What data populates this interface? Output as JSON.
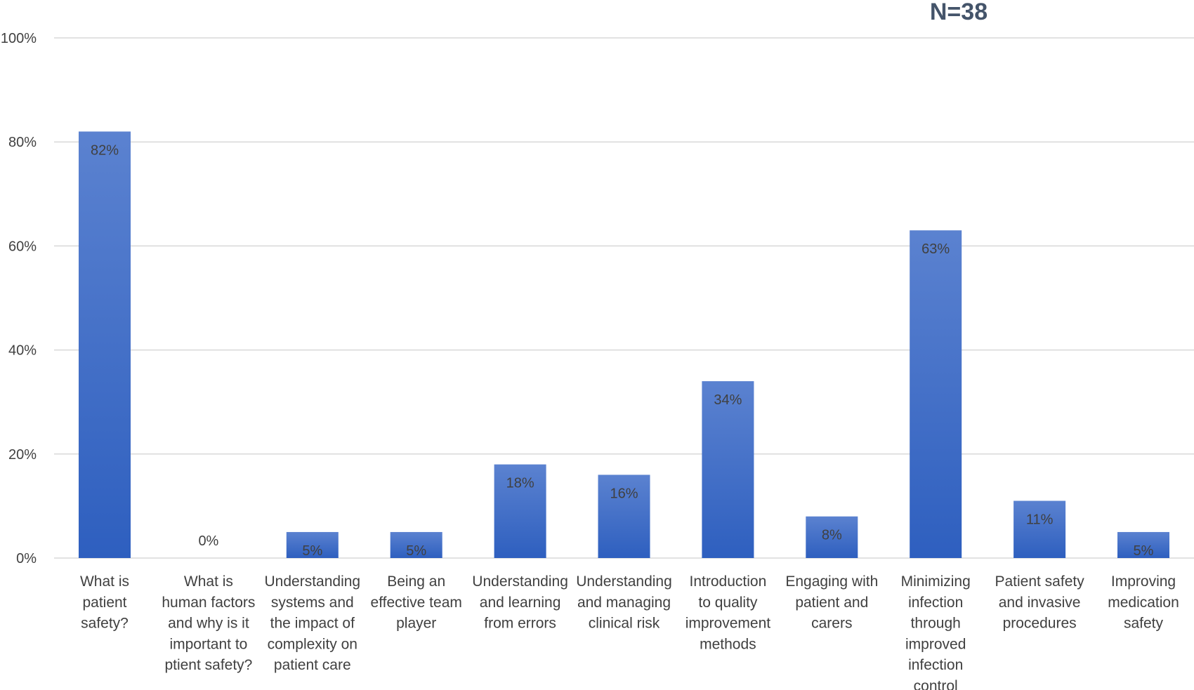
{
  "chart_data": {
    "type": "bar",
    "title": "N=38",
    "categories": [
      "What is patient safety?",
      "What is human factors and why is it important to ptient safety?",
      "Understanding systems and the impact of complexity on patient care",
      "Being an effective team player",
      "Understanding and learning from errors",
      "Understanding and managing clinical risk",
      "Introduction to quality improvement methods",
      "Engaging with patient and carers",
      "Minimizing infection through improved infection control",
      "Patient safety and invasive procedures",
      "Improving medication safety"
    ],
    "category_lines": [
      [
        "What is",
        "patient",
        "safety?"
      ],
      [
        "What is",
        "human factors",
        "and why is it",
        "important to",
        "ptient safety?"
      ],
      [
        "Understanding",
        "systems and",
        "the impact of",
        "complexity on",
        "patient care"
      ],
      [
        "Being an",
        "effective team",
        "player"
      ],
      [
        "Understanding",
        "and learning",
        "from errors"
      ],
      [
        "Understanding",
        "and managing",
        "clinical risk"
      ],
      [
        "Introduction",
        "to quality",
        "improvement",
        "methods"
      ],
      [
        "Engaging with",
        "patient and",
        "carers"
      ],
      [
        "Minimizing",
        "infection",
        "through",
        "improved",
        "infection",
        "control"
      ],
      [
        "Patient safety",
        "and invasive",
        "procedures"
      ],
      [
        "Improving",
        "medication",
        "safety"
      ]
    ],
    "values": [
      82,
      0,
      5,
      5,
      18,
      16,
      34,
      8,
      63,
      11,
      5
    ],
    "data_labels": [
      "82%",
      "0%",
      "5%",
      "5%",
      "18%",
      "16%",
      "34%",
      "8%",
      "63%",
      "11%",
      "5%"
    ],
    "ylim": [
      0,
      100
    ],
    "yticks": [
      0,
      20,
      40,
      60,
      80,
      100
    ],
    "ytick_labels": [
      "0%",
      "20%",
      "40%",
      "60%",
      "80%",
      "100%"
    ],
    "xlabel": "",
    "ylabel": "",
    "grid": true,
    "legend": "none",
    "colors": {
      "bar_top": "#5b82d0",
      "bar_bottom": "#2e5fbf",
      "grid": "#d9d9d9",
      "text": "#404040",
      "title": "#44546a"
    }
  }
}
